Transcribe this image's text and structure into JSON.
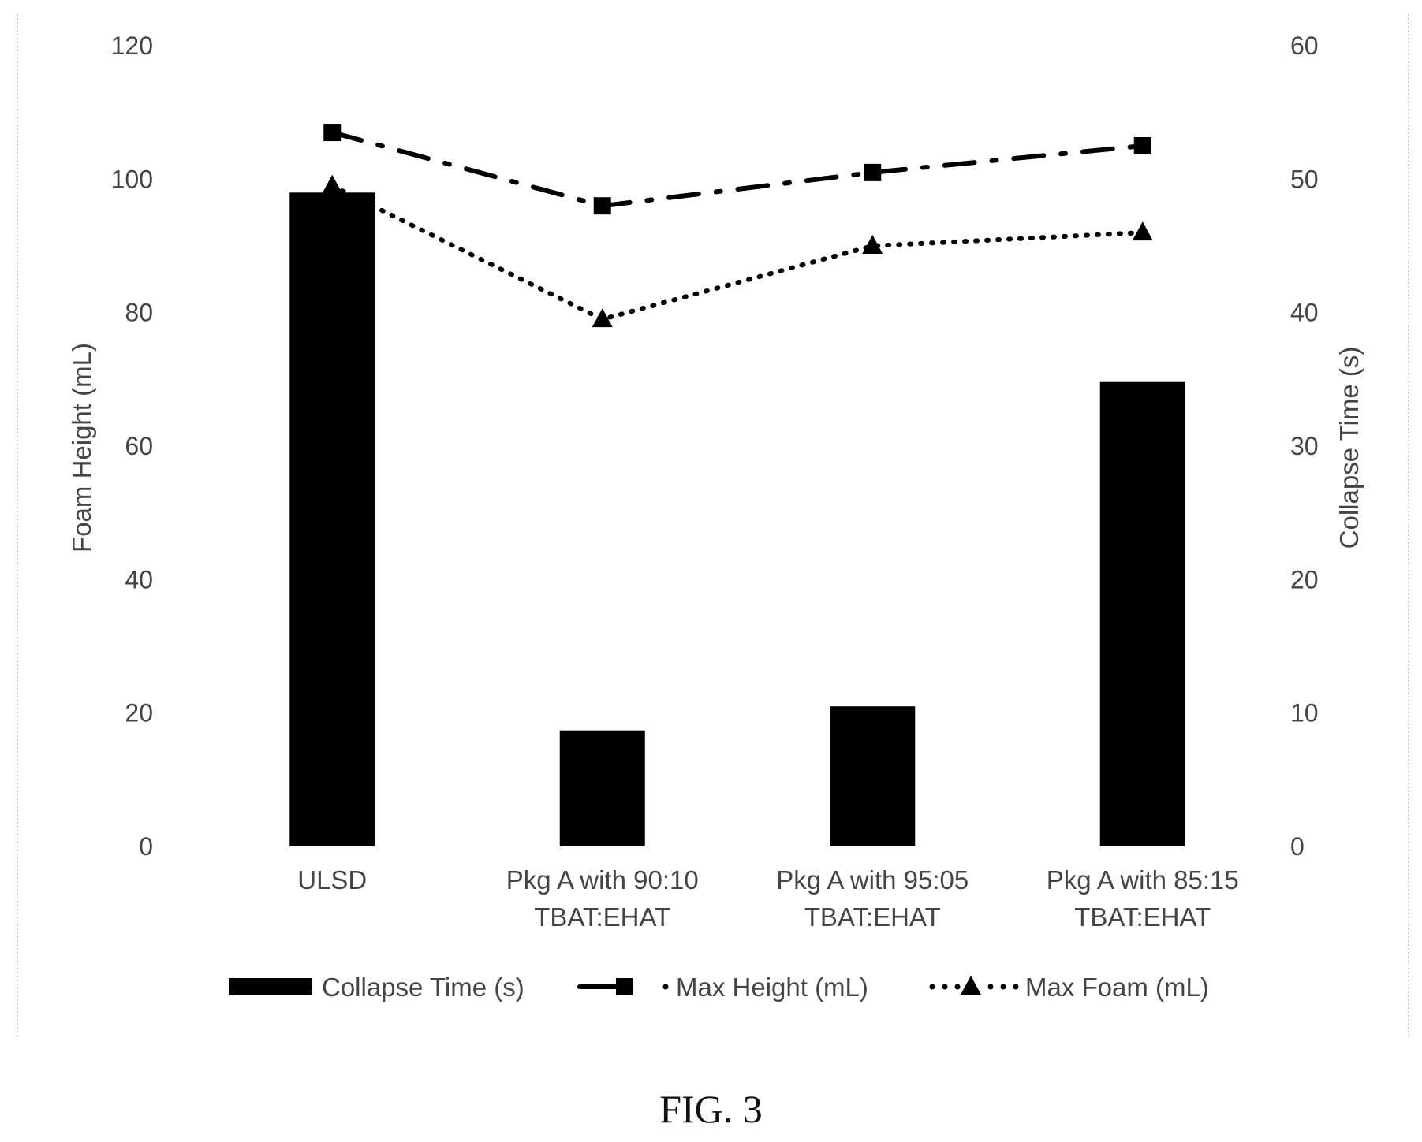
{
  "chart_data": {
    "type": "bar",
    "categories": [
      [
        "ULSD"
      ],
      [
        "Pkg A with 90:10",
        "TBAT:EHAT"
      ],
      [
        "Pkg A with 95:05",
        "TBAT:EHAT"
      ],
      [
        "Pkg A with 85:15",
        "TBAT:EHAT"
      ]
    ],
    "series": [
      {
        "name": "Collapse Time (s)",
        "kind": "bar",
        "axis": "right",
        "values": [
          49,
          8.7,
          10.5,
          34.8
        ],
        "color": "#000000"
      },
      {
        "name": "Max Height (mL)",
        "kind": "line",
        "axis": "left",
        "style": "dash-dot",
        "marker": "square",
        "values": [
          107,
          96,
          101,
          105
        ],
        "color": "#000000"
      },
      {
        "name": "Max Foam (mL)",
        "kind": "line",
        "axis": "left",
        "style": "dotted",
        "marker": "triangle",
        "values": [
          99,
          79,
          90,
          92
        ],
        "color": "#000000"
      }
    ],
    "ylabel_left": "Foam Height (mL)",
    "ylabel_right": "Collapse Time (s)",
    "ylim_left": [
      0,
      120
    ],
    "ylim_right": [
      0,
      60
    ],
    "yticks_left": [
      "0",
      "20",
      "40",
      "60",
      "80",
      "100",
      "120"
    ],
    "yticks_right": [
      "0",
      "10",
      "20",
      "30",
      "40",
      "50",
      "60"
    ],
    "grid": false,
    "legend_position": "bottom"
  },
  "caption": "FIG. 3"
}
